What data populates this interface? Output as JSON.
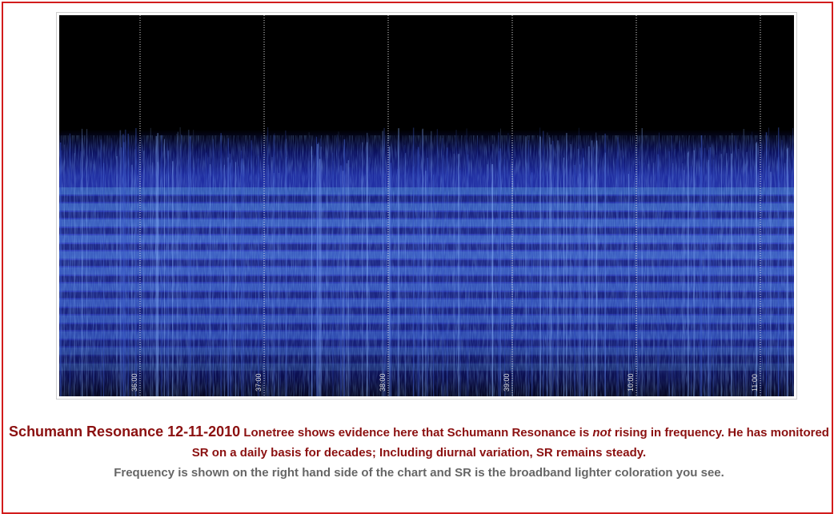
{
  "image": {
    "time_labels": [
      "36:00",
      "37:00",
      "38:00",
      "39:00",
      "10:00",
      "11:00"
    ]
  },
  "caption": {
    "title": "Schumann Resonance 12-11-2010",
    "text_before": "Lonetree shows evidence here that Schumann Resonance is",
    "emphasis": "not",
    "text_after": "rising in frequency. He has monitored SR on a daily basis for decades; Including diurnal variation, SR remains steady.",
    "note": "Frequency is shown on the right hand side of the chart and SR is the broadband lighter coloration you see."
  }
}
